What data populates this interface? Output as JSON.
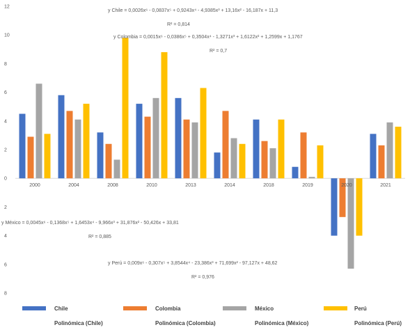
{
  "chart_data": {
    "type": "bar",
    "categories": [
      "2000",
      "2004",
      "2008",
      "2010",
      "2013",
      "2014",
      "2018",
      "2019",
      "2020",
      "2021"
    ],
    "ylim": [
      -8,
      12
    ],
    "ytick_labels": [
      "12",
      "10",
      "8",
      "6",
      "4",
      "2",
      "0",
      "2",
      "4",
      "6",
      "8"
    ],
    "ytick_values": [
      12,
      10,
      8,
      6,
      4,
      2,
      0,
      -2,
      -4,
      -6,
      -8
    ],
    "grid": false,
    "legend_position": "bottom",
    "series": [
      {
        "name": "Chile",
        "color": "#4472C4",
        "values": [
          4.5,
          5.8,
          3.2,
          5.2,
          5.6,
          1.8,
          4.1,
          0.8,
          -4.0,
          3.1
        ]
      },
      {
        "name": "Colombia",
        "color": "#ED7D31",
        "values": [
          2.9,
          4.7,
          2.4,
          4.3,
          4.1,
          4.7,
          2.6,
          3.2,
          -2.7,
          2.3
        ]
      },
      {
        "name": "México",
        "color": "#A5A5A5",
        "values": [
          6.6,
          4.1,
          1.3,
          5.6,
          3.9,
          2.8,
          2.1,
          0.1,
          -6.3,
          3.9
        ]
      },
      {
        "name": "Perú",
        "color": "#FFC000",
        "values": [
          3.1,
          5.2,
          9.8,
          8.8,
          6.3,
          2.4,
          4.1,
          2.3,
          -4.0,
          3.6
        ]
      }
    ],
    "trendlines": [
      {
        "name": "Polinómica (Chile)",
        "equation": "y Chile = 0,0026x⁶ - 0,0837x⁵ + 0,9243x⁴ - 4,9385x³ + 13,16x² - 16,187x + 11,3",
        "r2": "R² = 0,814"
      },
      {
        "name": "Polinómica (Colombia)",
        "equation": "y Colombia = 0,0015x⁶ - 0,0386x⁵ + 0,3504x⁴ - 1,3271x³ + 1,6122x² + 1,2599x + 1,1767",
        "r2": "R² = 0,7"
      },
      {
        "name": "Polinómica (México)",
        "equation": "y México = 0,0045x⁶ - 0,1368x⁵ + 1,6453x⁴ - 9,966x³ + 31,876x² - 50,426x + 33,81",
        "r2": "R² = 0,885"
      },
      {
        "name": "Polinómica (Perú)",
        "equation": "y Perú = 0,009x⁶ - 0,307x⁵ + 3,8544x⁴ - 23,386x³ + 71,699x² - 97,127x + 48,62",
        "r2": "R² = 0,976"
      }
    ]
  }
}
